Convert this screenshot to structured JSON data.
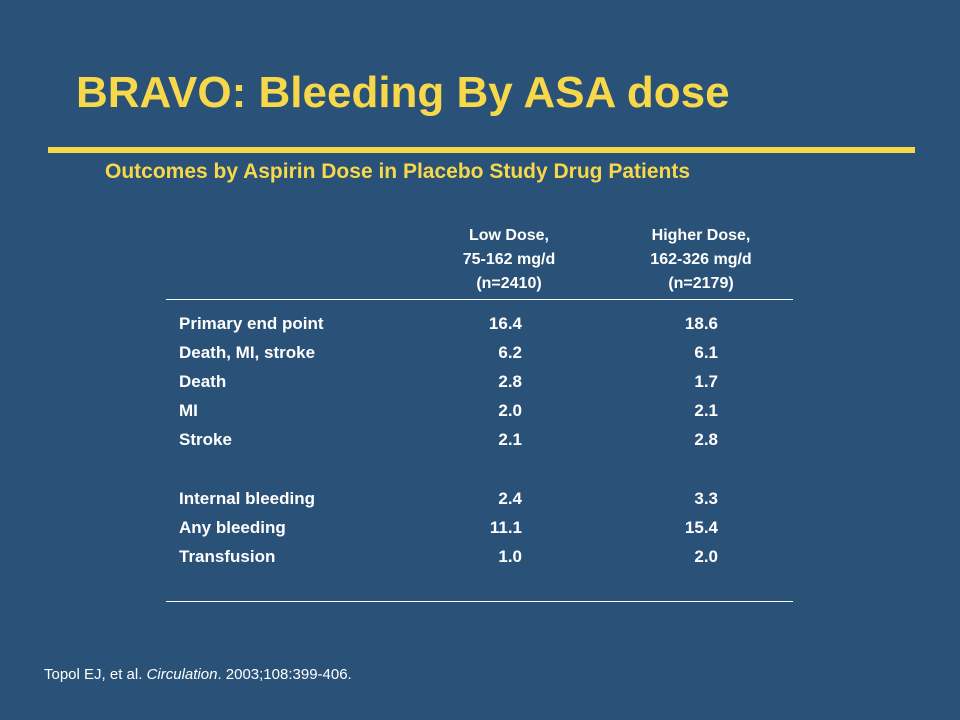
{
  "slide": {
    "title": "BRAVO:  Bleeding By ASA dose",
    "subtitle": "Outcomes by Aspirin Dose in Placebo Study Drug Patients"
  },
  "table": {
    "columns": [
      {
        "line1": "Low Dose,",
        "line2": "75-162 mg/d",
        "line3": "(n=2410)"
      },
      {
        "line1": "Higher Dose,",
        "line2": "162-326 mg/d",
        "line3": "(n=2179)"
      }
    ],
    "rows": [
      {
        "label": "Primary end point",
        "low": "16.4",
        "high": "18.6"
      },
      {
        "label": "Death, MI, stroke",
        "low": "6.2",
        "high": "6.1"
      },
      {
        "label": "Death",
        "low": "2.8",
        "high": "1.7"
      },
      {
        "label": "MI",
        "low": "2.0",
        "high": "2.1"
      },
      {
        "label": "Stroke",
        "low": "2.1",
        "high": "2.8"
      },
      {
        "label": "Internal bleeding",
        "low": "2.4",
        "high": "3.3"
      },
      {
        "label": "Any bleeding",
        "low": "11.1",
        "high": "15.4"
      },
      {
        "label": "Transfusion",
        "low": "1.0",
        "high": "2.0"
      }
    ]
  },
  "citation": {
    "authors": "Topol EJ, et al. ",
    "journal": "Circulation",
    "details": ". 2003;108:399-406."
  },
  "colors": {
    "background": "#2a5178",
    "accent": "#f7d84a",
    "text": "#ffffff"
  }
}
